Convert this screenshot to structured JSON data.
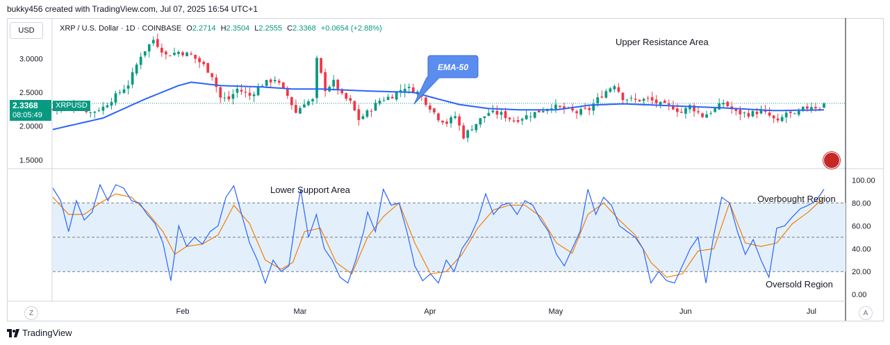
{
  "header": {
    "text": "bukky456 created with TradingView.com, Jul 07, 2025 16:54 UTC+1"
  },
  "toolbar": {
    "currency": "USD"
  },
  "legend": {
    "symbol": "XRP / U.S. Dollar · 1D · COINBASE",
    "open_label": "O",
    "open": "2.2714",
    "high_label": "H",
    "high": "2.3504",
    "low_label": "L",
    "low": "2.2555",
    "close_label": "C",
    "close": "2.3368",
    "change": "+0.0654 (+2.88%)"
  },
  "price_tag": {
    "price": "2.3368",
    "countdown": "08:05:49",
    "symbol": "XRPUSD"
  },
  "footer": {
    "logo_text": "TradingView",
    "z_label": "Z",
    "a_label": "A"
  },
  "colors": {
    "up": "#089981",
    "down": "#f23645",
    "ema": "#2962ff",
    "rsi_fast": "#2962ff",
    "rsi_slow": "#f57c00",
    "band": "#e3f0fb",
    "callout": "#5b8def"
  },
  "chart_data": [
    {
      "type": "candlestick",
      "title": "XRP / U.S. Dollar · 1D · COINBASE",
      "y_ticks": [
        "3.0000",
        "2.5000",
        "2.0000",
        "1.5000"
      ],
      "y_tick_values": [
        3.0,
        2.5,
        2.0,
        1.5
      ],
      "ylim": [
        1.37,
        3.6
      ],
      "x_ticks": [
        "Feb",
        "Mar",
        "Apr",
        "May",
        "Jun",
        "Jul"
      ],
      "n_days": 185,
      "x_tick_days": [
        31,
        59,
        90,
        120,
        151,
        181
      ],
      "last_price": 2.3368,
      "anchors_close": [
        [
          0,
          2.25
        ],
        [
          3,
          2.32
        ],
        [
          6,
          2.3
        ],
        [
          9,
          2.2
        ],
        [
          12,
          2.28
        ],
        [
          15,
          2.45
        ],
        [
          18,
          2.62
        ],
        [
          21,
          3.05
        ],
        [
          24,
          3.28
        ],
        [
          27,
          3.05
        ],
        [
          30,
          3.1
        ],
        [
          33,
          3.05
        ],
        [
          36,
          2.9
        ],
        [
          38,
          2.75
        ],
        [
          40,
          2.42
        ],
        [
          42,
          2.4
        ],
        [
          44,
          2.55
        ],
        [
          47,
          2.45
        ],
        [
          50,
          2.62
        ],
        [
          53,
          2.7
        ],
        [
          56,
          2.45
        ],
        [
          58,
          2.2
        ],
        [
          60,
          2.35
        ],
        [
          62,
          2.38
        ],
        [
          63,
          2.98
        ],
        [
          65,
          2.55
        ],
        [
          67,
          2.65
        ],
        [
          69,
          2.45
        ],
        [
          71,
          2.35
        ],
        [
          73,
          2.1
        ],
        [
          75,
          2.2
        ],
        [
          78,
          2.38
        ],
        [
          81,
          2.45
        ],
        [
          84,
          2.58
        ],
        [
          87,
          2.5
        ],
        [
          90,
          2.28
        ],
        [
          92,
          2.12
        ],
        [
          94,
          2.05
        ],
        [
          96,
          2.15
        ],
        [
          98,
          1.85
        ],
        [
          100,
          1.98
        ],
        [
          102,
          2.1
        ],
        [
          104,
          2.2
        ],
        [
          107,
          2.18
        ],
        [
          110,
          2.08
        ],
        [
          113,
          2.15
        ],
        [
          116,
          2.22
        ],
        [
          119,
          2.3
        ],
        [
          122,
          2.25
        ],
        [
          125,
          2.2
        ],
        [
          128,
          2.25
        ],
        [
          130,
          2.4
        ],
        [
          132,
          2.52
        ],
        [
          134,
          2.62
        ],
        [
          136,
          2.42
        ],
        [
          139,
          2.38
        ],
        [
          142,
          2.4
        ],
        [
          145,
          2.32
        ],
        [
          148,
          2.28
        ],
        [
          150,
          2.2
        ],
        [
          152,
          2.3
        ],
        [
          155,
          2.15
        ],
        [
          158,
          2.25
        ],
        [
          160,
          2.35
        ],
        [
          163,
          2.2
        ],
        [
          166,
          2.18
        ],
        [
          169,
          2.22
        ],
        [
          171,
          2.15
        ],
        [
          173,
          2.05
        ],
        [
          175,
          2.2
        ],
        [
          177,
          2.15
        ],
        [
          179,
          2.25
        ],
        [
          181,
          2.3
        ],
        [
          183,
          2.27
        ],
        [
          184,
          2.3368
        ]
      ],
      "ema_anchors": [
        [
          0,
          1.95
        ],
        [
          12,
          2.12
        ],
        [
          22,
          2.4
        ],
        [
          30,
          2.6
        ],
        [
          33,
          2.65
        ],
        [
          40,
          2.6
        ],
        [
          50,
          2.58
        ],
        [
          57,
          2.55
        ],
        [
          64,
          2.55
        ],
        [
          75,
          2.52
        ],
        [
          86,
          2.5
        ],
        [
          92,
          2.4
        ],
        [
          97,
          2.32
        ],
        [
          104,
          2.26
        ],
        [
          112,
          2.24
        ],
        [
          120,
          2.24
        ],
        [
          128,
          2.31
        ],
        [
          136,
          2.33
        ],
        [
          148,
          2.3
        ],
        [
          160,
          2.27
        ],
        [
          172,
          2.23
        ],
        [
          184,
          2.24
        ]
      ],
      "annotations": [
        {
          "text": "Upper Resistance Area"
        },
        {
          "text": "EMA-50"
        }
      ]
    },
    {
      "type": "line",
      "title": "",
      "y_ticks": [
        "100.00",
        "80.00",
        "60.00",
        "40.00",
        "20.00",
        "0.00"
      ],
      "y_tick_values": [
        100,
        80,
        60,
        40,
        20,
        0
      ],
      "ylim": [
        -6,
        110
      ],
      "band": [
        20,
        80
      ],
      "dashed_levels": [
        80,
        50,
        20
      ],
      "fast_anchors": [
        [
          0,
          93
        ],
        [
          2,
          82
        ],
        [
          4,
          55
        ],
        [
          6,
          82
        ],
        [
          8,
          65
        ],
        [
          10,
          72
        ],
        [
          12,
          96
        ],
        [
          14,
          82
        ],
        [
          16,
          96
        ],
        [
          18,
          93
        ],
        [
          20,
          82
        ],
        [
          22,
          80
        ],
        [
          24,
          70
        ],
        [
          26,
          62
        ],
        [
          28,
          45
        ],
        [
          30,
          12
        ],
        [
          32,
          60
        ],
        [
          34,
          42
        ],
        [
          36,
          50
        ],
        [
          38,
          44
        ],
        [
          40,
          55
        ],
        [
          42,
          60
        ],
        [
          44,
          85
        ],
        [
          46,
          95
        ],
        [
          48,
          70
        ],
        [
          50,
          45
        ],
        [
          52,
          30
        ],
        [
          54,
          10
        ],
        [
          56,
          30
        ],
        [
          58,
          20
        ],
        [
          60,
          25
        ],
        [
          62,
          72
        ],
        [
          63,
          92
        ],
        [
          65,
          50
        ],
        [
          67,
          70
        ],
        [
          69,
          40
        ],
        [
          71,
          30
        ],
        [
          73,
          15
        ],
        [
          75,
          10
        ],
        [
          77,
          30
        ],
        [
          79,
          55
        ],
        [
          80,
          72
        ],
        [
          82,
          55
        ],
        [
          84,
          92
        ],
        [
          86,
          78
        ],
        [
          88,
          80
        ],
        [
          90,
          55
        ],
        [
          92,
          25
        ],
        [
          94,
          12
        ],
        [
          96,
          18
        ],
        [
          98,
          10
        ],
        [
          100,
          30
        ],
        [
          102,
          20
        ],
        [
          104,
          40
        ],
        [
          106,
          50
        ],
        [
          108,
          65
        ],
        [
          110,
          88
        ],
        [
          112,
          70
        ],
        [
          114,
          78
        ],
        [
          116,
          80
        ],
        [
          118,
          70
        ],
        [
          120,
          82
        ],
        [
          122,
          78
        ],
        [
          124,
          65
        ],
        [
          126,
          55
        ],
        [
          128,
          35
        ],
        [
          130,
          25
        ],
        [
          132,
          40
        ],
        [
          134,
          55
        ],
        [
          136,
          92
        ],
        [
          138,
          70
        ],
        [
          140,
          85
        ],
        [
          142,
          78
        ],
        [
          144,
          60
        ],
        [
          146,
          55
        ],
        [
          148,
          50
        ],
        [
          150,
          40
        ],
        [
          152,
          10
        ],
        [
          154,
          20
        ],
        [
          156,
          12
        ],
        [
          158,
          10
        ],
        [
          160,
          25
        ],
        [
          162,
          40
        ],
        [
          164,
          50
        ],
        [
          166,
          10
        ],
        [
          168,
          52
        ],
        [
          170,
          85
        ],
        [
          172,
          80
        ],
        [
          174,
          55
        ],
        [
          176,
          35
        ],
        [
          178,
          48
        ],
        [
          180,
          30
        ],
        [
          182,
          15
        ],
        [
          184,
          58
        ],
        [
          186,
          60
        ],
        [
          188,
          68
        ],
        [
          190,
          75
        ],
        [
          192,
          78
        ],
        [
          194,
          82
        ],
        [
          196,
          92
        ]
      ],
      "slow_anchors": [
        [
          0,
          85
        ],
        [
          4,
          70
        ],
        [
          8,
          70
        ],
        [
          12,
          80
        ],
        [
          16,
          88
        ],
        [
          20,
          85
        ],
        [
          24,
          72
        ],
        [
          28,
          55
        ],
        [
          31,
          35
        ],
        [
          34,
          42
        ],
        [
          38,
          44
        ],
        [
          42,
          52
        ],
        [
          46,
          78
        ],
        [
          50,
          62
        ],
        [
          54,
          30
        ],
        [
          58,
          22
        ],
        [
          61,
          28
        ],
        [
          64,
          55
        ],
        [
          68,
          58
        ],
        [
          72,
          28
        ],
        [
          76,
          18
        ],
        [
          80,
          50
        ],
        [
          84,
          68
        ],
        [
          88,
          80
        ],
        [
          92,
          45
        ],
        [
          96,
          18
        ],
        [
          100,
          20
        ],
        [
          104,
          35
        ],
        [
          108,
          58
        ],
        [
          112,
          74
        ],
        [
          116,
          78
        ],
        [
          120,
          78
        ],
        [
          124,
          68
        ],
        [
          128,
          45
        ],
        [
          132,
          36
        ],
        [
          136,
          70
        ],
        [
          140,
          80
        ],
        [
          144,
          65
        ],
        [
          148,
          52
        ],
        [
          152,
          28
        ],
        [
          156,
          15
        ],
        [
          160,
          18
        ],
        [
          164,
          38
        ],
        [
          168,
          40
        ],
        [
          172,
          80
        ],
        [
          176,
          45
        ],
        [
          180,
          42
        ],
        [
          184,
          45
        ],
        [
          188,
          62
        ],
        [
          192,
          72
        ],
        [
          196,
          85
        ]
      ],
      "rsi_n_points": 197,
      "annotations": [
        {
          "text": "Lower Support Area"
        },
        {
          "text": "Overbought Region"
        },
        {
          "text": "Oversold Region"
        }
      ]
    }
  ]
}
